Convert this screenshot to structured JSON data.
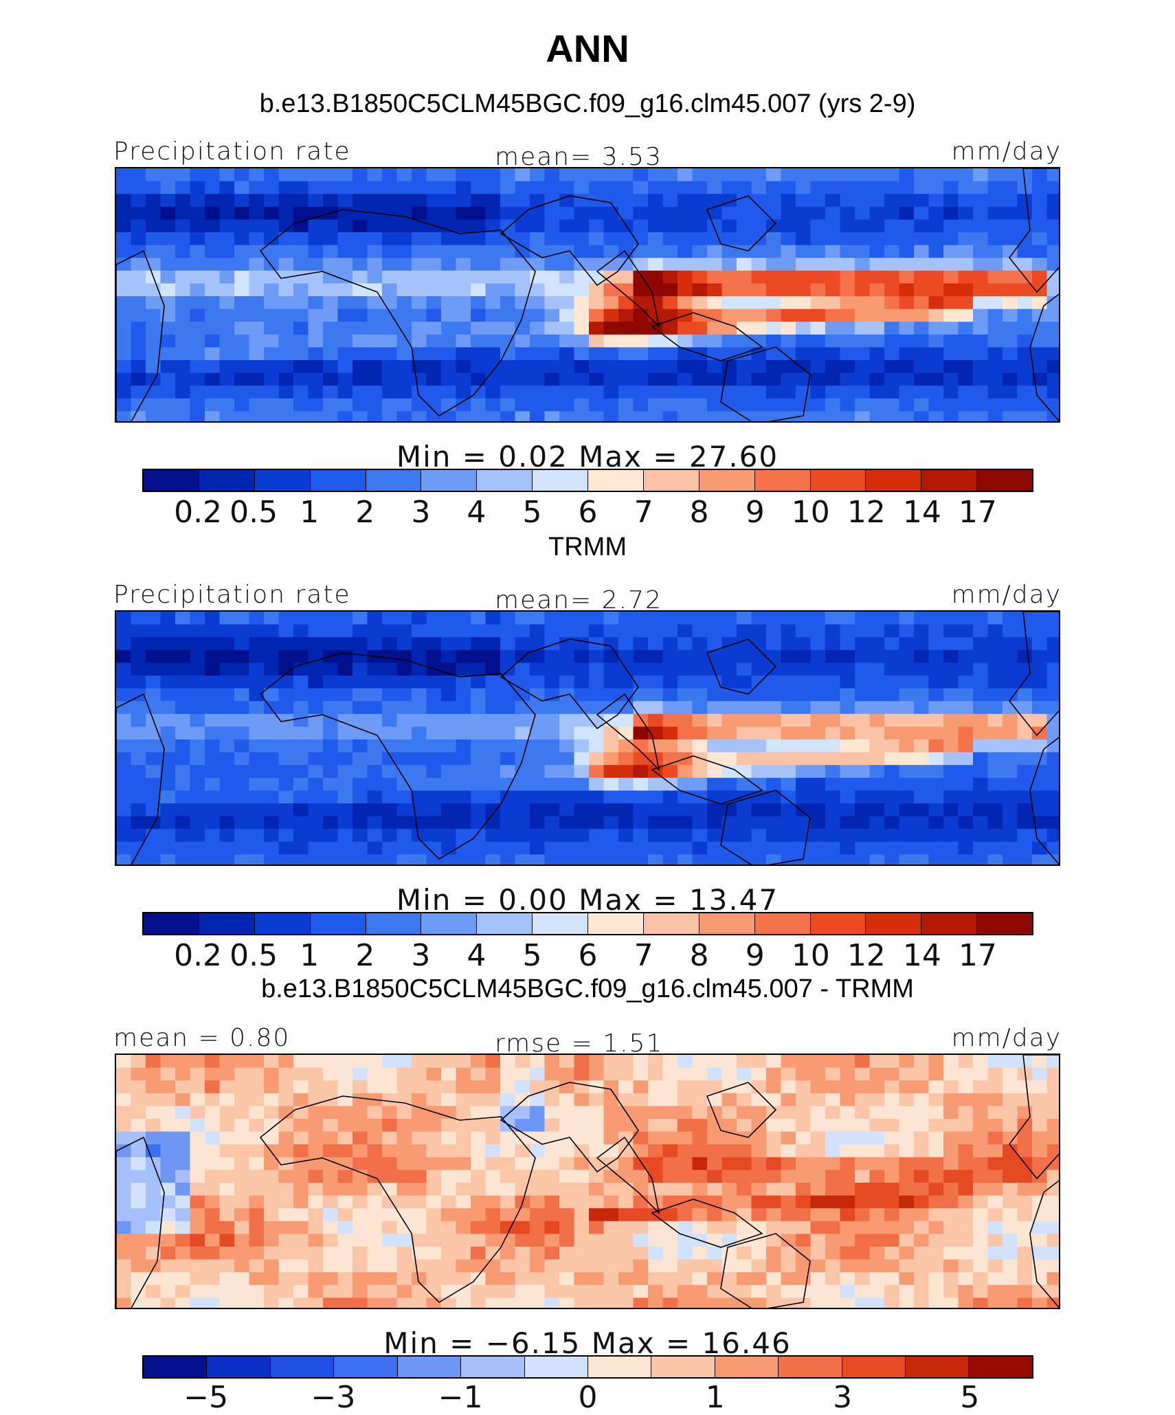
{
  "title": "ANN",
  "panels": [
    {
      "subtitle": "b.e13.B1850C5CLM45BGC.f09_g16.clm45.007 (yrs 2-9)",
      "left_label": "Precipitation  rate",
      "center_label": "mean=    3.53",
      "right_label": "mm/day",
      "minmax": "Min  =     0.02  Max  =    27.60",
      "palette": "precip",
      "colorbar_ticks": [
        "0.2",
        "0.5",
        "1",
        "2",
        "3",
        "4",
        "5",
        "6",
        "7",
        "8",
        "9",
        "10",
        "12",
        "14",
        "17"
      ],
      "field": "model"
    },
    {
      "subtitle": "TRMM",
      "left_label": "Precipitation  rate",
      "center_label": "mean=    2.72",
      "right_label": "mm/day",
      "minmax": "Min  =     0.00  Max  =    13.47",
      "palette": "precip",
      "colorbar_ticks": [
        "0.2",
        "0.5",
        "1",
        "2",
        "3",
        "4",
        "5",
        "6",
        "7",
        "8",
        "9",
        "10",
        "12",
        "14",
        "17"
      ],
      "field": "obs"
    },
    {
      "subtitle": "b.e13.B1850C5CLM45BGC.f09_g16.clm45.007 - TRMM",
      "left_label": "mean  =    0.80",
      "center_label": "rmse  =    1.51",
      "right_label": "mm/day",
      "minmax": "Min  =  −6.15  Max  =    16.46",
      "palette": "diff",
      "colorbar_ticks": [
        "−5",
        "−3",
        "−1",
        "0",
        "1",
        "3",
        "5"
      ],
      "field": "diff"
    }
  ],
  "colors": {
    "precip": [
      "#00108c",
      "#0025b0",
      "#0a3cd2",
      "#1f5aeb",
      "#3c78f0",
      "#6e9bf5",
      "#a5c3fa",
      "#d2e4fc",
      "#fde6d2",
      "#fbc3a5",
      "#f89b73",
      "#f5734b",
      "#ec4a23",
      "#d62d0a",
      "#b41905",
      "#8c0800"
    ],
    "diff": [
      "#00108c",
      "#0a2fc4",
      "#1f50e6",
      "#3c70f0",
      "#6e96f5",
      "#a5c0fa",
      "#d2e2fc",
      "#fde5d3",
      "#fbc6a8",
      "#f89b73",
      "#f27047",
      "#e64a23",
      "#c8280a",
      "#960a00"
    ]
  }
}
